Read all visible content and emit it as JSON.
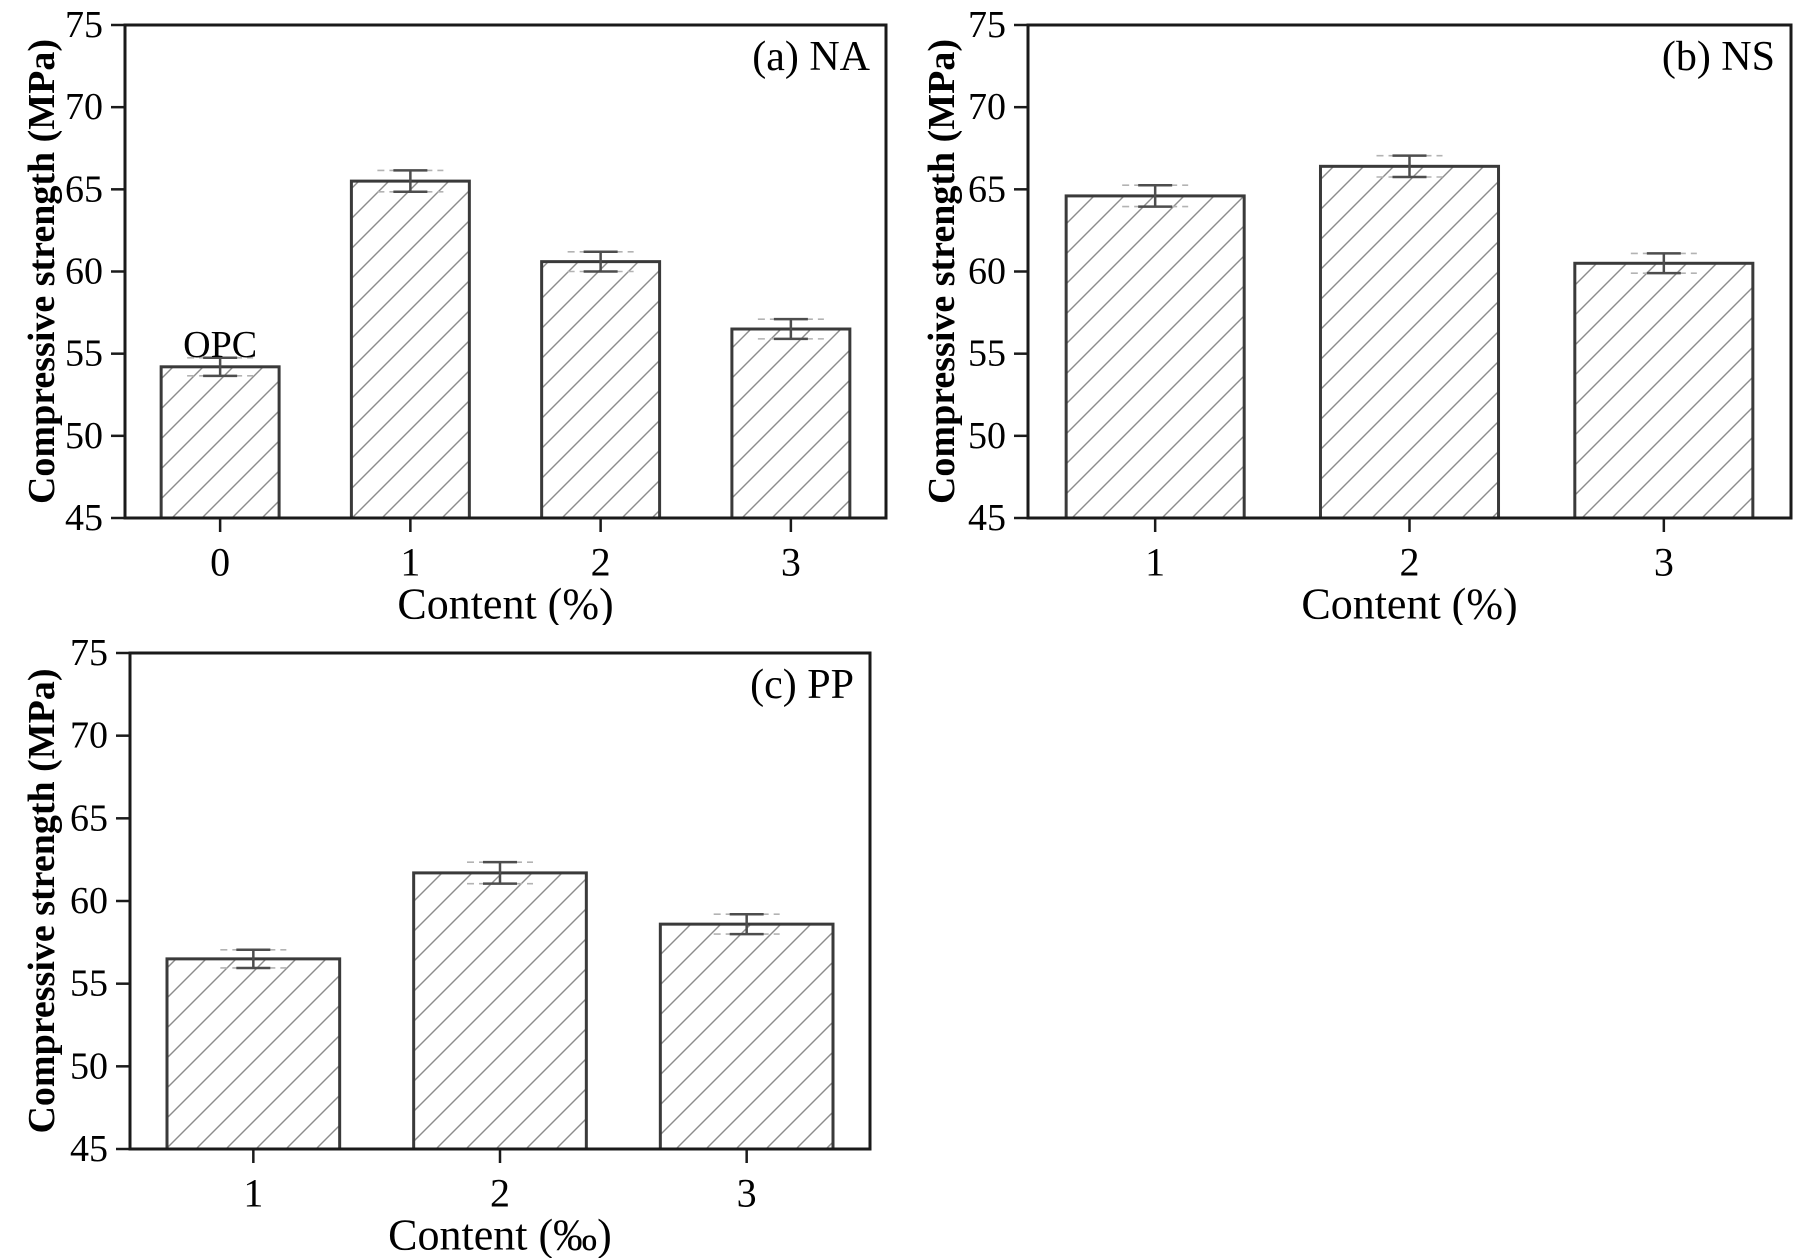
{
  "page": {
    "background": "#ffffff"
  },
  "colors": {
    "axis": "#1a1a1a",
    "bar_fill": "#ffffff",
    "bar_border": "#3a3a3a",
    "hatch": "#8c8c8c",
    "error_bar": "#4d4d4d",
    "error_dash": "#b3b3b3",
    "text": "#000000"
  },
  "chart_data": [
    {
      "id": "a",
      "type": "bar",
      "title": "(a) NA",
      "xlabel": "Content (%)",
      "ylabel": "Compressive strength (MPa)",
      "categories": [
        "0",
        "1",
        "2",
        "3"
      ],
      "values": [
        54.2,
        65.5,
        60.6,
        56.5
      ],
      "errors": [
        0.55,
        0.65,
        0.6,
        0.6
      ],
      "annotations": [
        {
          "text": "OPC",
          "bar_index": 0
        }
      ],
      "ylim": [
        45,
        75
      ],
      "yticks": [
        45,
        50,
        55,
        60,
        65,
        70,
        75
      ],
      "grid": false,
      "legend": null,
      "hatch_style": "diagonal-forward"
    },
    {
      "id": "b",
      "type": "bar",
      "title": "(b) NS",
      "xlabel": "Content (%)",
      "ylabel": "Compressive strength (MPa)",
      "categories": [
        "1",
        "2",
        "3"
      ],
      "values": [
        64.6,
        66.4,
        60.5
      ],
      "errors": [
        0.65,
        0.65,
        0.6
      ],
      "annotations": [],
      "ylim": [
        45,
        75
      ],
      "yticks": [
        45,
        50,
        55,
        60,
        65,
        70,
        75
      ],
      "grid": false,
      "legend": null,
      "hatch_style": "diagonal-forward"
    },
    {
      "id": "c",
      "type": "bar",
      "title": "(c) PP",
      "xlabel": "Content (‰)",
      "ylabel": "Compressive strength (MPa)",
      "categories": [
        "1",
        "2",
        "3"
      ],
      "values": [
        56.5,
        61.7,
        58.6
      ],
      "errors": [
        0.55,
        0.65,
        0.6
      ],
      "annotations": [],
      "ylim": [
        45,
        75
      ],
      "yticks": [
        45,
        50,
        55,
        60,
        65,
        70,
        75
      ],
      "grid": false,
      "legend": null,
      "hatch_style": "diagonal-forward"
    }
  ]
}
